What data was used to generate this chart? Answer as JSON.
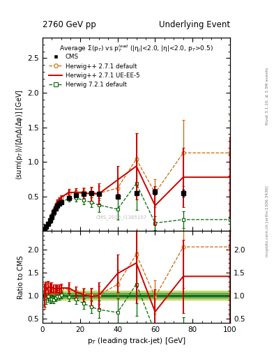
{
  "title_left": "2760 GeV pp",
  "title_right": "Underlying Event",
  "right_label_top": "Rivet 3.1.10, ≥ 3.3M events",
  "right_label_bottom": "mcplots.cern.ch [arXiv:1306.3436]",
  "watermark": "CMS_2015_I1385107",
  "plot_title": "Average Σ(p$_{T}$) vs p$_{T}^{lead}$ (|η$_{j}$|<2.0, |η|<2.0, p$_{T}$>0.5)",
  "xlabel": "p$_{T}$ (leading track-jet) [GeV]",
  "ylabel": "⟨sum(p$_{T}$)⟩/[ΔηΔ(Δφ)] [GeV]",
  "ylabel_ratio": "Ratio to CMS",
  "xlim": [
    0,
    100
  ],
  "ylim_main": [
    0,
    2.8
  ],
  "ylim_ratio": [
    0.4,
    2.4
  ],
  "yticks_main": [
    0.5,
    1.0,
    1.5,
    2.0,
    2.5
  ],
  "yticks_ratio": [
    0.5,
    1.0,
    1.5,
    2.0
  ],
  "cms_x": [
    1,
    2,
    3,
    4,
    5,
    6,
    7,
    8,
    9,
    10,
    14,
    18,
    22,
    26,
    30,
    40,
    50,
    60,
    75
  ],
  "cms_y": [
    0.02,
    0.06,
    0.1,
    0.15,
    0.2,
    0.27,
    0.33,
    0.37,
    0.4,
    0.42,
    0.48,
    0.52,
    0.54,
    0.55,
    0.54,
    0.5,
    0.55,
    0.57,
    0.55
  ],
  "cms_ey": [
    0.003,
    0.006,
    0.008,
    0.01,
    0.012,
    0.015,
    0.016,
    0.018,
    0.019,
    0.02,
    0.022,
    0.024,
    0.025,
    0.026,
    0.027,
    0.03,
    0.03,
    0.04,
    0.05
  ],
  "hw271d_x": [
    1,
    2,
    3,
    4,
    5,
    6,
    7,
    8,
    9,
    10,
    14,
    18,
    22,
    26,
    30,
    40,
    50,
    60,
    75,
    100
  ],
  "hw271d_y": [
    0.02,
    0.065,
    0.115,
    0.165,
    0.22,
    0.29,
    0.355,
    0.41,
    0.45,
    0.48,
    0.545,
    0.565,
    0.565,
    0.555,
    0.545,
    0.62,
    1.04,
    0.55,
    1.13,
    1.13
  ],
  "hw271d_ey": [
    0.005,
    0.008,
    0.01,
    0.012,
    0.014,
    0.018,
    0.02,
    0.022,
    0.025,
    0.028,
    0.04,
    0.05,
    0.06,
    0.07,
    0.1,
    0.15,
    0.38,
    0.2,
    0.48,
    0.55
  ],
  "hw271ue_x": [
    1,
    2,
    3,
    4,
    5,
    6,
    7,
    8,
    9,
    10,
    14,
    18,
    22,
    26,
    30,
    40,
    50,
    60,
    75,
    100
  ],
  "hw271ue_y": [
    0.02,
    0.068,
    0.118,
    0.175,
    0.235,
    0.31,
    0.378,
    0.428,
    0.458,
    0.488,
    0.558,
    0.558,
    0.548,
    0.538,
    0.538,
    0.738,
    0.938,
    0.368,
    0.778,
    0.778
  ],
  "hw271ue_ey": [
    0.004,
    0.007,
    0.01,
    0.013,
    0.015,
    0.018,
    0.022,
    0.025,
    0.028,
    0.03,
    0.05,
    0.06,
    0.07,
    0.1,
    0.15,
    0.2,
    0.48,
    0.28,
    0.43,
    0.58
  ],
  "hw721d_x": [
    1,
    2,
    3,
    4,
    5,
    6,
    7,
    8,
    9,
    10,
    14,
    18,
    22,
    26,
    30,
    40,
    50,
    60,
    75,
    100
  ],
  "hw721d_y": [
    0.02,
    0.058,
    0.098,
    0.138,
    0.185,
    0.245,
    0.315,
    0.365,
    0.395,
    0.425,
    0.465,
    0.475,
    0.445,
    0.415,
    0.375,
    0.315,
    0.685,
    0.115,
    0.165,
    0.165
  ],
  "hw721d_ey": [
    0.004,
    0.007,
    0.009,
    0.011,
    0.013,
    0.016,
    0.019,
    0.022,
    0.024,
    0.027,
    0.04,
    0.05,
    0.06,
    0.07,
    0.1,
    0.15,
    0.38,
    0.1,
    0.12,
    0.15
  ],
  "cms_band_inner": 0.05,
  "cms_band_outer": 0.1,
  "color_cms": "#000000",
  "color_hw271d": "#cc6600",
  "color_hw271ue": "#cc0000",
  "color_hw721d": "#006600",
  "color_band_inner": "#44aa44",
  "color_band_outer": "#bbcc44"
}
